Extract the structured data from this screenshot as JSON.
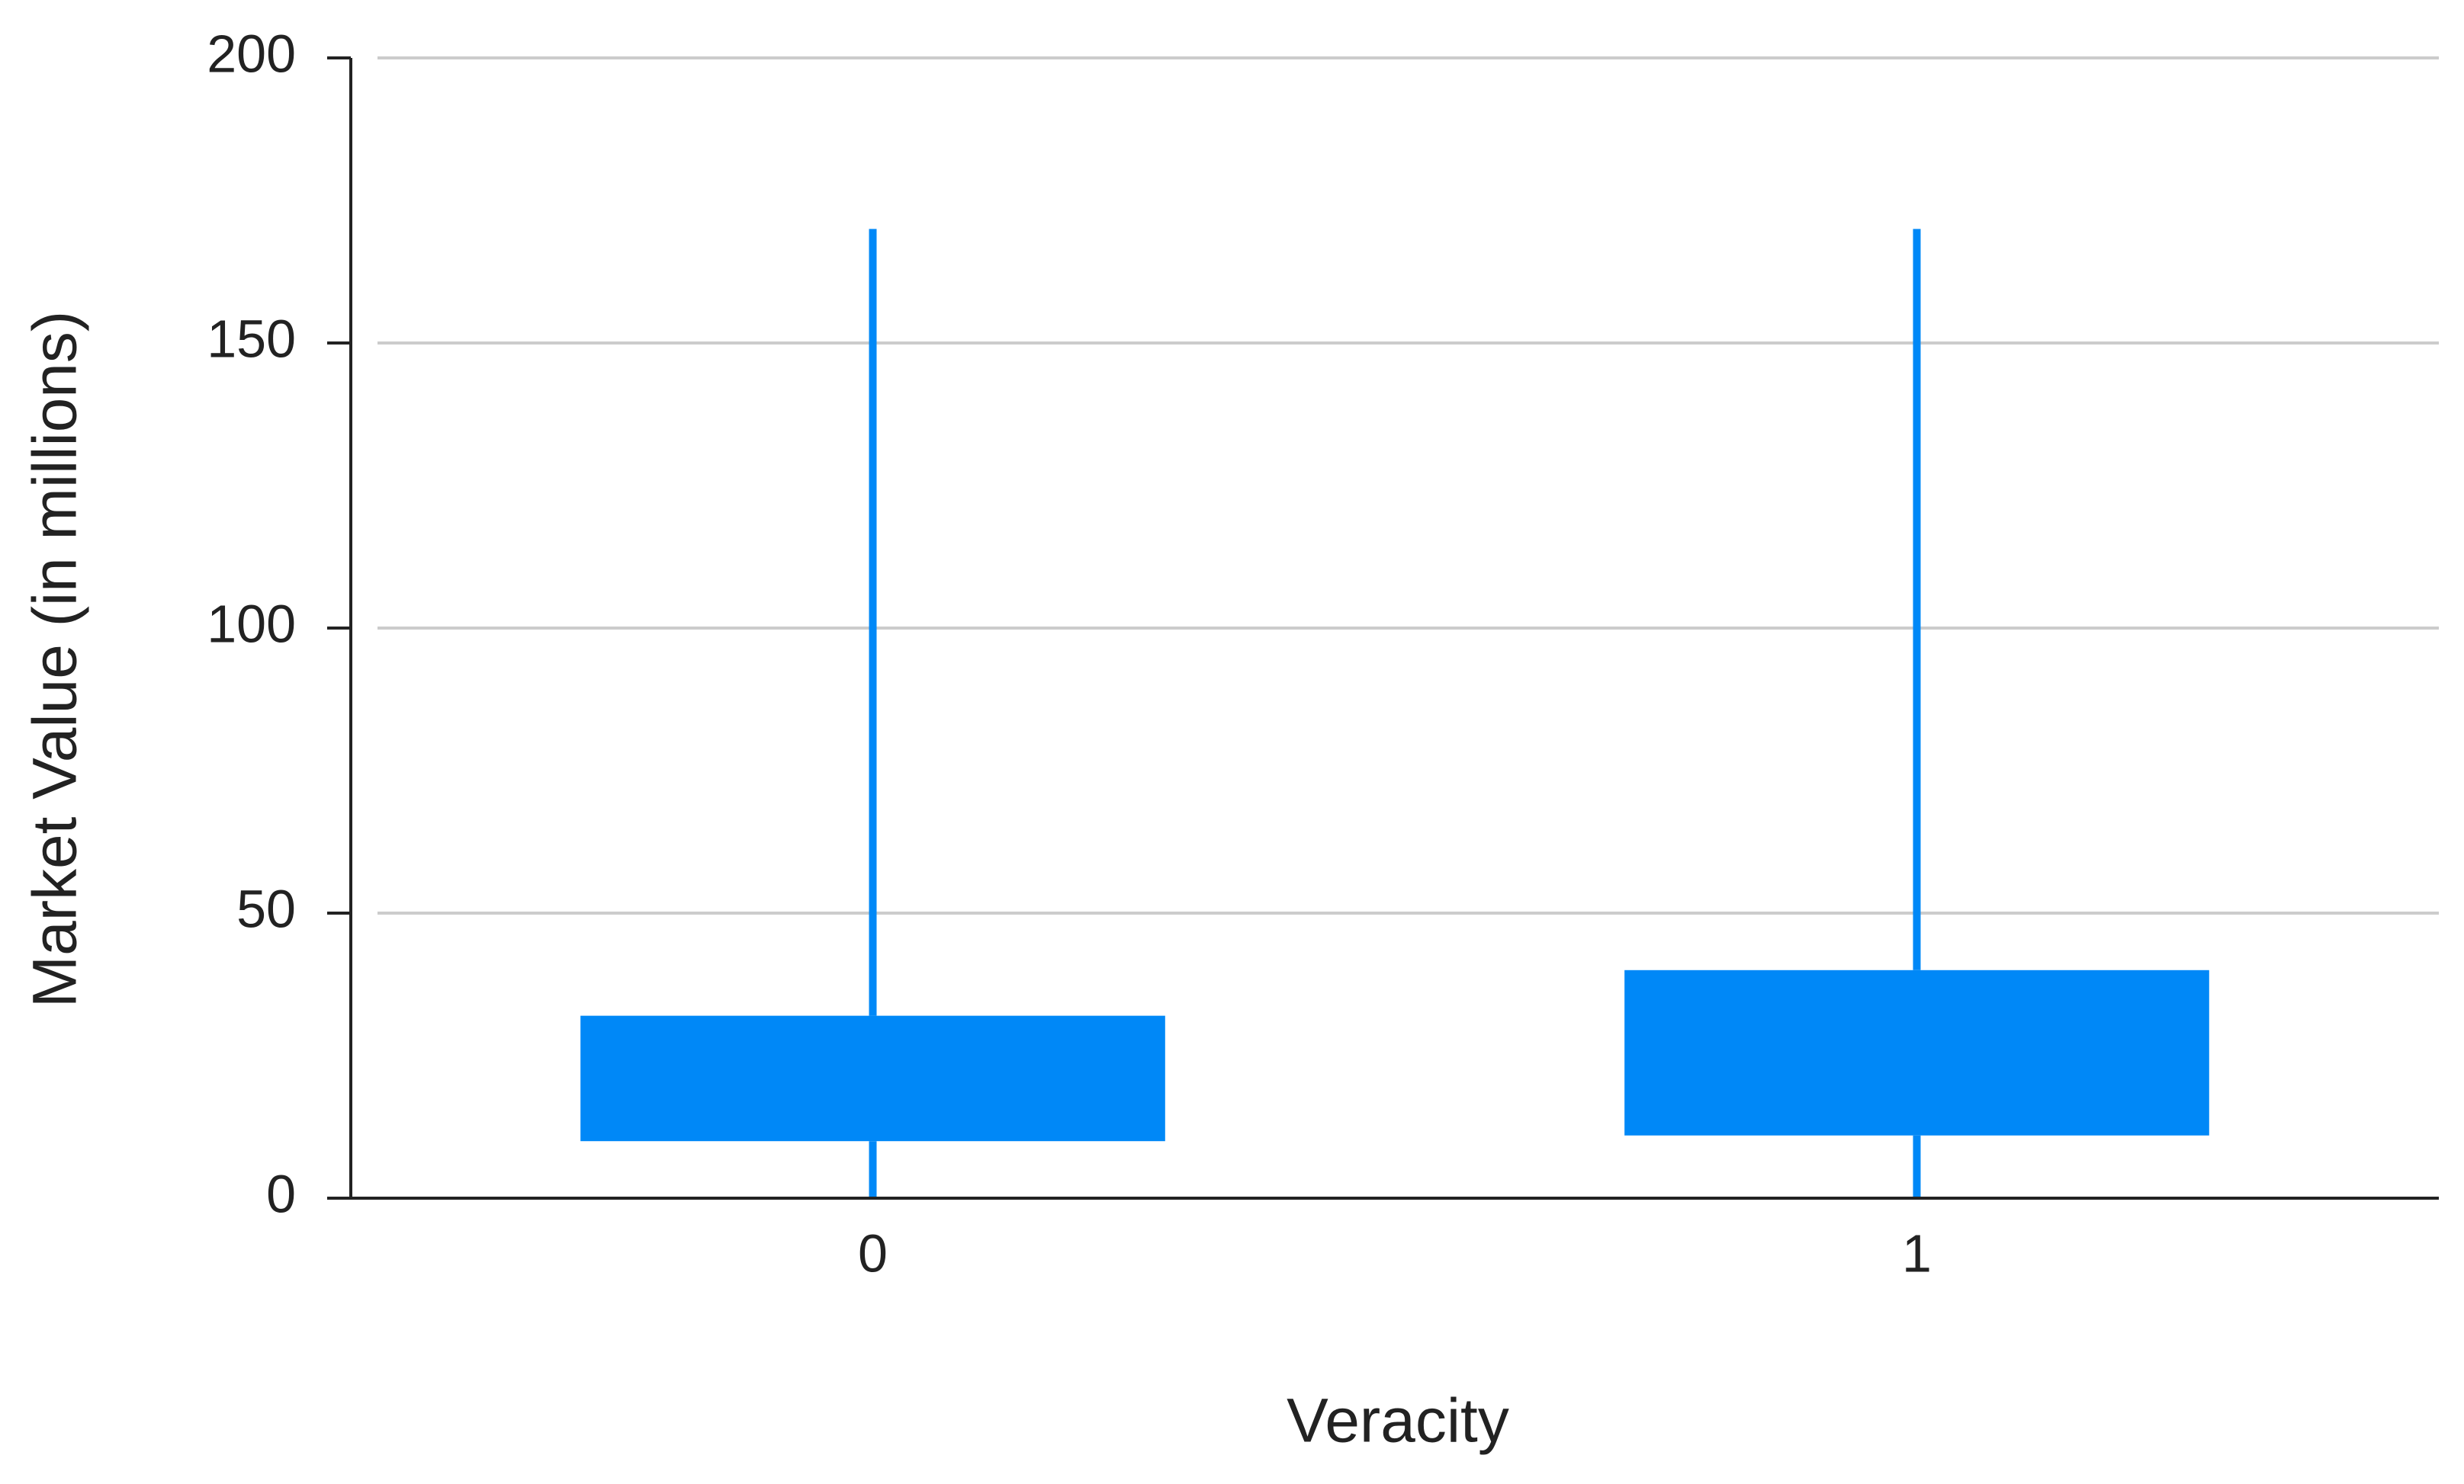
{
  "chart_data": {
    "type": "box",
    "x_label": "Veracity",
    "y_label": "Market Value (in millions)",
    "categories": [
      "0",
      "1"
    ],
    "boxes": [
      {
        "low": 0,
        "q1": 10,
        "q3": 32,
        "high": 170
      },
      {
        "low": 0,
        "q1": 11,
        "q3": 40,
        "high": 170
      }
    ],
    "color": "#0088f7",
    "ylim": [
      0,
      200
    ],
    "yticks": [
      0,
      50,
      100,
      150,
      200
    ],
    "grid": true
  }
}
